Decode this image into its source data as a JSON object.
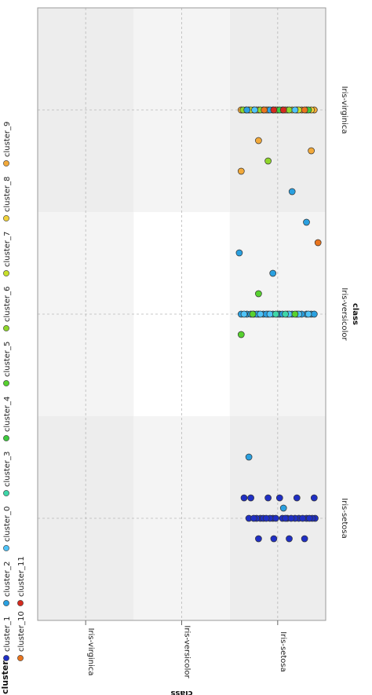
{
  "chart_data": {
    "type": "scatter",
    "orientation": "rotated-90-clockwise",
    "x_axis": {
      "label": "class",
      "categories": [
        "Iris-setosa",
        "Iris-versicolor",
        "Iris-virginica"
      ]
    },
    "y_axis": {
      "label": "class",
      "categories": [
        "Iris-setosa",
        "Iris-versicolor",
        "Iris-virginica"
      ]
    },
    "legend": {
      "title": "cluster",
      "placement": "top",
      "entries": [
        {
          "name": "cluster_1",
          "color": "#1f2fc4"
        },
        {
          "name": "cluster_2",
          "color": "#2aa0e0"
        },
        {
          "name": "cluster_0",
          "color": "#4fc3f7"
        },
        {
          "name": "cluster_3",
          "color": "#3ed6a8"
        },
        {
          "name": "cluster_4",
          "color": "#3ec93e"
        },
        {
          "name": "cluster_5",
          "color": "#57d12f"
        },
        {
          "name": "cluster_6",
          "color": "#8fd62a"
        },
        {
          "name": "cluster_7",
          "color": "#c8e02a"
        },
        {
          "name": "cluster_8",
          "color": "#f0d23a"
        },
        {
          "name": "cluster_9",
          "color": "#f2a93a"
        },
        {
          "name": "cluster_10",
          "color": "#e8741e"
        },
        {
          "name": "cluster_11",
          "color": "#d42a1e"
        }
      ]
    },
    "grid": true,
    "points": [
      {
        "x": 0,
        "y": -0.39,
        "c": "cluster_1"
      },
      {
        "x": 0,
        "y": -0.36,
        "c": "cluster_1"
      },
      {
        "x": 0,
        "y": -0.22,
        "c": "cluster_1"
      },
      {
        "x": 0,
        "y": -0.3,
        "c": "cluster_1"
      },
      {
        "x": 0,
        "y": 0.18,
        "c": "cluster_1"
      },
      {
        "x": 0,
        "y": 0.3,
        "c": "cluster_1"
      },
      {
        "x": 0,
        "y": 0.15,
        "c": "cluster_1"
      },
      {
        "x": 0,
        "y": 0.05,
        "c": "cluster_1"
      },
      {
        "x": 0,
        "y": -0.05,
        "c": "cluster_1"
      },
      {
        "x": 0,
        "y": 0.02,
        "c": "cluster_1"
      },
      {
        "x": 0,
        "y": 0.22,
        "c": "cluster_1"
      },
      {
        "x": 0,
        "y": -0.1,
        "c": "cluster_1"
      },
      {
        "x": 0,
        "y": -0.26,
        "c": "cluster_1"
      },
      {
        "x": 0,
        "y": -0.18,
        "c": "cluster_1"
      },
      {
        "x": 0,
        "y": 0.08,
        "c": "cluster_1"
      },
      {
        "x": 0,
        "y": -0.08,
        "c": "cluster_1"
      },
      {
        "x": 0,
        "y": 0.25,
        "c": "cluster_1"
      },
      {
        "x": 0,
        "y": -0.33,
        "c": "cluster_1"
      },
      {
        "x": 0,
        "y": 0.12,
        "c": "cluster_1"
      },
      {
        "x": 0,
        "y": -0.14,
        "c": "cluster_1"
      },
      {
        "x": 0.1,
        "y": -0.38,
        "c": "cluster_1"
      },
      {
        "x": 0.1,
        "y": 0.28,
        "c": "cluster_1"
      },
      {
        "x": 0.1,
        "y": -0.2,
        "c": "cluster_1"
      },
      {
        "x": 0.1,
        "y": 0.1,
        "c": "cluster_1"
      },
      {
        "x": 0.1,
        "y": -0.02,
        "c": "cluster_1"
      },
      {
        "x": 0.1,
        "y": 0.35,
        "c": "cluster_1"
      },
      {
        "x": -0.1,
        "y": -0.12,
        "c": "cluster_1"
      },
      {
        "x": -0.1,
        "y": 0.2,
        "c": "cluster_1"
      },
      {
        "x": -0.1,
        "y": 0.04,
        "c": "cluster_1"
      },
      {
        "x": -0.1,
        "y": -0.28,
        "c": "cluster_1"
      },
      {
        "x": 0.05,
        "y": -0.06,
        "c": "cluster_2"
      },
      {
        "x": 0.3,
        "y": 0.3,
        "c": "cluster_2"
      },
      {
        "x": 1,
        "y": -0.35,
        "c": "cluster_2"
      },
      {
        "x": 1,
        "y": -0.3,
        "c": "cluster_2"
      },
      {
        "x": 1,
        "y": -0.1,
        "c": "cluster_2"
      },
      {
        "x": 1,
        "y": 0.05,
        "c": "cluster_2"
      },
      {
        "x": 1,
        "y": 0.15,
        "c": "cluster_2"
      },
      {
        "x": 1,
        "y": 0.25,
        "c": "cluster_2"
      },
      {
        "x": 1,
        "y": -0.2,
        "c": "cluster_2"
      },
      {
        "x": 1,
        "y": 0.32,
        "c": "cluster_2"
      },
      {
        "x": 1,
        "y": -0.02,
        "c": "cluster_2"
      },
      {
        "x": 1,
        "y": 0.1,
        "c": "cluster_2"
      },
      {
        "x": 1,
        "y": -0.25,
        "c": "cluster_2"
      },
      {
        "x": 1,
        "y": 0.2,
        "c": "cluster_2"
      },
      {
        "x": 1,
        "y": 0.38,
        "c": "cluster_2"
      },
      {
        "x": 1,
        "y": -0.15,
        "c": "cluster_2"
      },
      {
        "x": 1,
        "y": 0.0,
        "c": "cluster_2"
      },
      {
        "x": 1,
        "y": 0.28,
        "c": "cluster_2"
      },
      {
        "x": 1,
        "y": -0.38,
        "c": "cluster_2"
      },
      {
        "x": 1,
        "y": 0.12,
        "c": "cluster_2"
      },
      {
        "x": 1,
        "y": -0.05,
        "c": "cluster_2"
      },
      {
        "x": 1,
        "y": 0.22,
        "c": "cluster_2"
      },
      {
        "x": 1,
        "y": -0.32,
        "c": "cluster_0"
      },
      {
        "x": 1,
        "y": 0.08,
        "c": "cluster_0"
      },
      {
        "x": 1,
        "y": 0.35,
        "c": "cluster_0"
      },
      {
        "x": 1,
        "y": -0.12,
        "c": "cluster_0"
      },
      {
        "x": 1,
        "y": 0.18,
        "c": "cluster_0"
      },
      {
        "x": 1,
        "y": -0.22,
        "c": "cluster_0"
      },
      {
        "x": 1,
        "y": 0.02,
        "c": "cluster_3"
      },
      {
        "x": 1,
        "y": -0.08,
        "c": "cluster_3"
      },
      {
        "x": 1,
        "y": -0.18,
        "c": "cluster_5"
      },
      {
        "x": 1,
        "y": 0.26,
        "c": "cluster_5"
      },
      {
        "x": 1.3,
        "y": 0.4,
        "c": "cluster_2"
      },
      {
        "x": 1.45,
        "y": -0.3,
        "c": "cluster_2"
      },
      {
        "x": 1.2,
        "y": 0.05,
        "c": "cluster_2"
      },
      {
        "x": 0.9,
        "y": 0.38,
        "c": "cluster_5"
      },
      {
        "x": 1.1,
        "y": 0.2,
        "c": "cluster_5"
      },
      {
        "x": 2,
        "y": -0.38,
        "c": "cluster_9"
      },
      {
        "x": 2,
        "y": -0.3,
        "c": "cluster_9"
      },
      {
        "x": 2,
        "y": -0.2,
        "c": "cluster_9"
      },
      {
        "x": 2,
        "y": -0.1,
        "c": "cluster_9"
      },
      {
        "x": 2,
        "y": 0.0,
        "c": "cluster_9"
      },
      {
        "x": 2,
        "y": 0.1,
        "c": "cluster_9"
      },
      {
        "x": 2,
        "y": 0.2,
        "c": "cluster_9"
      },
      {
        "x": 2,
        "y": 0.3,
        "c": "cluster_9"
      },
      {
        "x": 2,
        "y": 0.38,
        "c": "cluster_9"
      },
      {
        "x": 2,
        "y": -0.25,
        "c": "cluster_9"
      },
      {
        "x": 2,
        "y": 0.05,
        "c": "cluster_9"
      },
      {
        "x": 2,
        "y": 0.25,
        "c": "cluster_9"
      },
      {
        "x": 2,
        "y": -0.05,
        "c": "cluster_9"
      },
      {
        "x": 2,
        "y": 0.15,
        "c": "cluster_9"
      },
      {
        "x": 2,
        "y": -0.15,
        "c": "cluster_8"
      },
      {
        "x": 2,
        "y": 0.33,
        "c": "cluster_8"
      },
      {
        "x": 2,
        "y": -0.35,
        "c": "cluster_8"
      },
      {
        "x": 2,
        "y": 0.12,
        "c": "cluster_8"
      },
      {
        "x": 2,
        "y": -0.08,
        "c": "cluster_8"
      },
      {
        "x": 2,
        "y": 0.22,
        "c": "cluster_8"
      },
      {
        "x": 2,
        "y": 0.02,
        "c": "cluster_7"
      },
      {
        "x": 2,
        "y": -0.22,
        "c": "cluster_7"
      },
      {
        "x": 2,
        "y": 0.28,
        "c": "cluster_7"
      },
      {
        "x": 2,
        "y": -0.12,
        "c": "cluster_6"
      },
      {
        "x": 2,
        "y": 0.18,
        "c": "cluster_6"
      },
      {
        "x": 2,
        "y": 0.36,
        "c": "cluster_6"
      },
      {
        "x": 2,
        "y": -0.02,
        "c": "cluster_4"
      },
      {
        "x": 2,
        "y": -0.32,
        "c": "cluster_4"
      },
      {
        "x": 2,
        "y": 0.08,
        "c": "cluster_2"
      },
      {
        "x": 2,
        "y": 0.32,
        "c": "cluster_2"
      },
      {
        "x": 2,
        "y": -0.18,
        "c": "cluster_0"
      },
      {
        "x": 2,
        "y": 0.24,
        "c": "cluster_0"
      },
      {
        "x": 2,
        "y": -0.28,
        "c": "cluster_10"
      },
      {
        "x": 2,
        "y": 0.14,
        "c": "cluster_10"
      },
      {
        "x": 2,
        "y": -0.06,
        "c": "cluster_11"
      },
      {
        "x": 2,
        "y": 0.04,
        "c": "cluster_11"
      },
      {
        "x": 1.7,
        "y": 0.38,
        "c": "cluster_9"
      },
      {
        "x": 1.8,
        "y": -0.35,
        "c": "cluster_9"
      },
      {
        "x": 1.75,
        "y": 0.1,
        "c": "cluster_6"
      },
      {
        "x": 1.6,
        "y": -0.15,
        "c": "cluster_2"
      },
      {
        "x": 1.85,
        "y": 0.2,
        "c": "cluster_9"
      },
      {
        "x": 1.35,
        "y": -0.42,
        "c": "cluster_10"
      }
    ]
  }
}
